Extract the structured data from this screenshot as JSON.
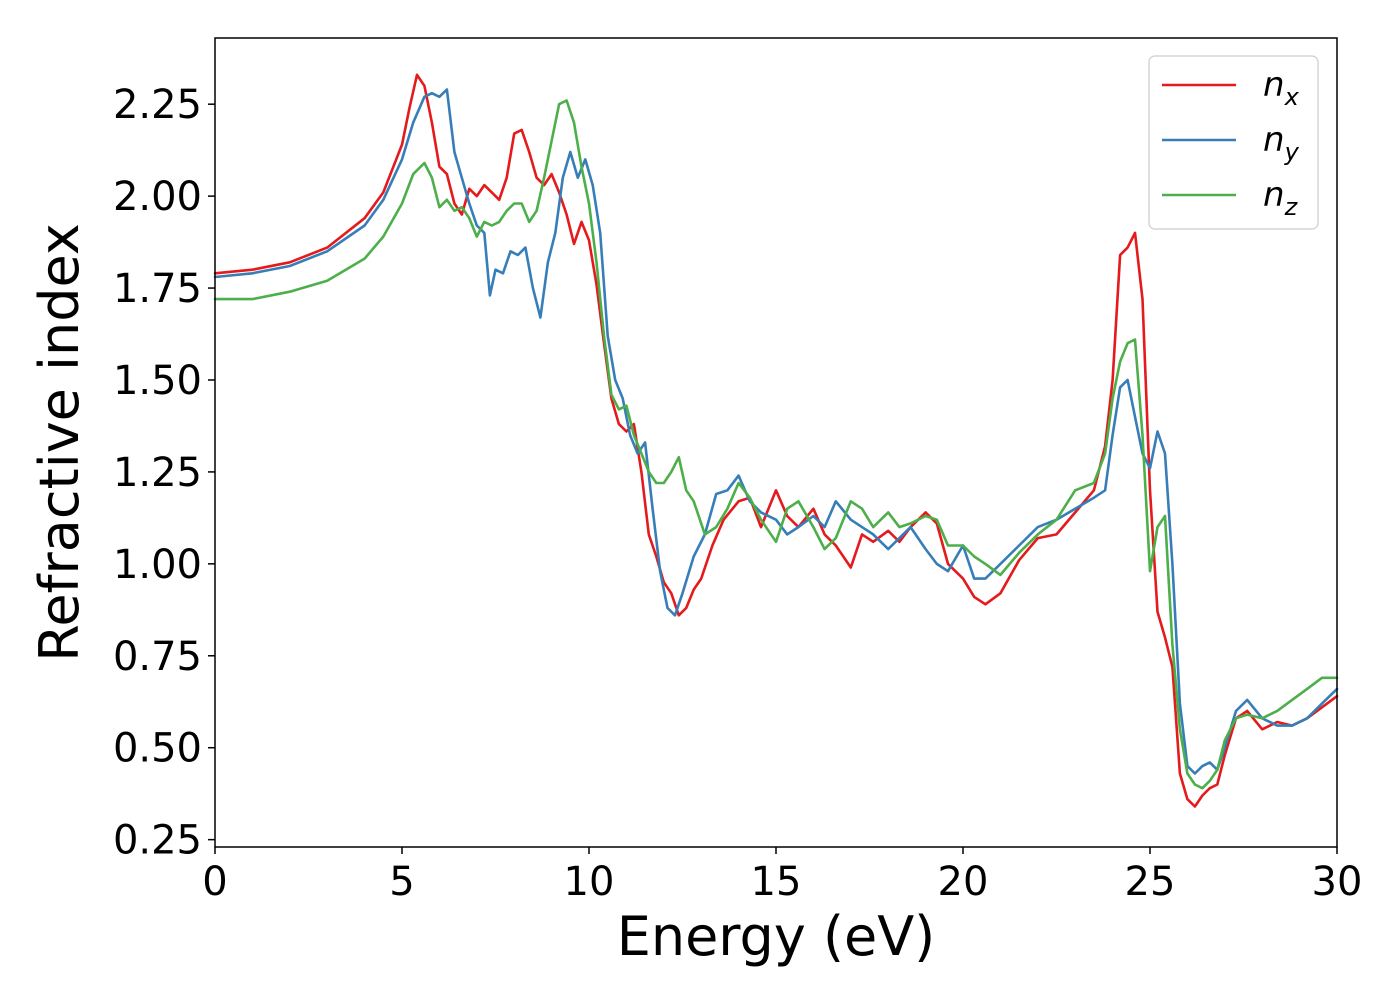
{
  "chart_data": {
    "type": "line",
    "xlabel": "Energy (eV)",
    "ylabel": "Refractive index",
    "xlim": [
      0,
      30
    ],
    "ylim": [
      0.23,
      2.43
    ],
    "xticks": [
      0,
      5,
      10,
      15,
      20,
      25,
      30
    ],
    "xtick_labels": [
      "0",
      "5",
      "10",
      "15",
      "20",
      "25",
      "30"
    ],
    "yticks": [
      0.25,
      0.5,
      0.75,
      1.0,
      1.25,
      1.5,
      1.75,
      2.0,
      2.25
    ],
    "ytick_labels": [
      "0.25",
      "0.50",
      "0.75",
      "1.00",
      "1.25",
      "1.50",
      "1.75",
      "2.00",
      "2.25"
    ],
    "grid": false,
    "legend_position": "top-right",
    "series": [
      {
        "name": "n",
        "subscript": "x",
        "color": "#e41a1c",
        "x": [
          0,
          1,
          2,
          3,
          4,
          4.5,
          5,
          5.2,
          5.4,
          5.6,
          5.8,
          6.0,
          6.2,
          6.4,
          6.6,
          6.8,
          7.0,
          7.2,
          7.4,
          7.6,
          7.8,
          8.0,
          8.2,
          8.4,
          8.6,
          8.8,
          9.0,
          9.2,
          9.4,
          9.6,
          9.8,
          10.0,
          10.2,
          10.4,
          10.6,
          10.8,
          11.0,
          11.2,
          11.4,
          11.6,
          11.8,
          12.0,
          12.2,
          12.4,
          12.6,
          12.8,
          13.0,
          13.3,
          13.6,
          14.0,
          14.3,
          14.6,
          15.0,
          15.3,
          15.6,
          16.0,
          16.3,
          16.6,
          17.0,
          17.3,
          17.6,
          18.0,
          18.3,
          18.6,
          19.0,
          19.3,
          19.6,
          20.0,
          20.3,
          20.6,
          21.0,
          21.5,
          22.0,
          22.5,
          23.0,
          23.5,
          23.8,
          24.0,
          24.2,
          24.4,
          24.6,
          24.8,
          25.0,
          25.2,
          25.4,
          25.6,
          25.8,
          26.0,
          26.2,
          26.4,
          26.6,
          26.8,
          27.0,
          27.3,
          27.6,
          28.0,
          28.4,
          28.8,
          29.2,
          29.6,
          30.0
        ],
        "values": [
          1.79,
          1.8,
          1.82,
          1.86,
          1.94,
          2.01,
          2.14,
          2.24,
          2.33,
          2.3,
          2.2,
          2.08,
          2.06,
          1.98,
          1.95,
          2.02,
          2.0,
          2.03,
          2.01,
          1.99,
          2.05,
          2.17,
          2.18,
          2.12,
          2.05,
          2.03,
          2.06,
          2.01,
          1.95,
          1.87,
          1.93,
          1.88,
          1.76,
          1.6,
          1.45,
          1.38,
          1.36,
          1.38,
          1.25,
          1.08,
          1.02,
          0.95,
          0.92,
          0.86,
          0.88,
          0.93,
          0.96,
          1.05,
          1.12,
          1.17,
          1.18,
          1.1,
          1.2,
          1.13,
          1.1,
          1.15,
          1.08,
          1.05,
          0.99,
          1.08,
          1.06,
          1.09,
          1.06,
          1.1,
          1.14,
          1.11,
          1.0,
          0.96,
          0.91,
          0.89,
          0.92,
          1.01,
          1.07,
          1.08,
          1.14,
          1.2,
          1.32,
          1.5,
          1.84,
          1.86,
          1.9,
          1.72,
          1.2,
          0.87,
          0.8,
          0.72,
          0.43,
          0.36,
          0.34,
          0.37,
          0.39,
          0.4,
          0.48,
          0.58,
          0.6,
          0.55,
          0.57,
          0.56,
          0.58,
          0.61,
          0.64
        ]
      },
      {
        "name": "n",
        "subscript": "y",
        "color": "#377eb8",
        "x": [
          0,
          1,
          2,
          3,
          4,
          4.5,
          5,
          5.3,
          5.6,
          5.8,
          6.0,
          6.2,
          6.4,
          6.6,
          6.8,
          7.0,
          7.2,
          7.35,
          7.5,
          7.7,
          7.9,
          8.1,
          8.3,
          8.5,
          8.7,
          8.9,
          9.1,
          9.3,
          9.5,
          9.7,
          9.9,
          10.1,
          10.3,
          10.5,
          10.7,
          10.9,
          11.1,
          11.3,
          11.5,
          11.7,
          11.9,
          12.1,
          12.3,
          12.5,
          12.8,
          13.1,
          13.4,
          13.7,
          14.0,
          14.3,
          14.6,
          15.0,
          15.3,
          15.6,
          16.0,
          16.3,
          16.6,
          17.0,
          17.3,
          17.6,
          18.0,
          18.3,
          18.6,
          19.0,
          19.3,
          19.6,
          20.0,
          20.3,
          20.6,
          21.0,
          21.5,
          22.0,
          22.5,
          23.0,
          23.5,
          23.8,
          24.0,
          24.2,
          24.4,
          24.6,
          24.8,
          25.0,
          25.2,
          25.4,
          25.6,
          25.8,
          26.0,
          26.2,
          26.4,
          26.6,
          26.8,
          27.0,
          27.3,
          27.6,
          28.0,
          28.4,
          28.8,
          29.2,
          29.6,
          30.0
        ],
        "values": [
          1.78,
          1.79,
          1.81,
          1.85,
          1.92,
          1.99,
          2.1,
          2.2,
          2.27,
          2.28,
          2.27,
          2.29,
          2.12,
          2.05,
          1.98,
          1.92,
          1.9,
          1.73,
          1.8,
          1.79,
          1.85,
          1.84,
          1.86,
          1.75,
          1.67,
          1.82,
          1.9,
          2.05,
          2.12,
          2.05,
          2.1,
          2.03,
          1.9,
          1.62,
          1.5,
          1.45,
          1.35,
          1.3,
          1.33,
          1.15,
          0.98,
          0.88,
          0.86,
          0.92,
          1.02,
          1.08,
          1.19,
          1.2,
          1.24,
          1.17,
          1.14,
          1.12,
          1.08,
          1.1,
          1.13,
          1.1,
          1.17,
          1.12,
          1.1,
          1.08,
          1.04,
          1.07,
          1.1,
          1.04,
          1.0,
          0.98,
          1.05,
          0.96,
          0.96,
          1.0,
          1.05,
          1.1,
          1.12,
          1.15,
          1.18,
          1.2,
          1.35,
          1.48,
          1.5,
          1.4,
          1.3,
          1.26,
          1.36,
          1.3,
          1.0,
          0.62,
          0.45,
          0.43,
          0.45,
          0.46,
          0.44,
          0.5,
          0.6,
          0.63,
          0.58,
          0.56,
          0.56,
          0.58,
          0.62,
          0.66
        ],
        "note": ""
      },
      {
        "name": "n",
        "subscript": "z",
        "color": "#4daf4a",
        "x": [
          0,
          1,
          2,
          3,
          4,
          4.5,
          5,
          5.3,
          5.6,
          5.8,
          6.0,
          6.2,
          6.4,
          6.6,
          6.8,
          7.0,
          7.2,
          7.4,
          7.6,
          7.8,
          8.0,
          8.2,
          8.4,
          8.6,
          8.8,
          9.0,
          9.2,
          9.4,
          9.6,
          9.8,
          10.0,
          10.2,
          10.4,
          10.6,
          10.8,
          11.0,
          11.2,
          11.4,
          11.6,
          11.8,
          12.0,
          12.2,
          12.4,
          12.6,
          12.8,
          13.1,
          13.4,
          13.7,
          14.0,
          14.3,
          14.6,
          15.0,
          15.3,
          15.6,
          16.0,
          16.3,
          16.6,
          17.0,
          17.3,
          17.6,
          18.0,
          18.3,
          18.6,
          19.0,
          19.3,
          19.6,
          20.0,
          20.3,
          20.6,
          21.0,
          21.5,
          22.0,
          22.5,
          23.0,
          23.5,
          23.8,
          24.0,
          24.2,
          24.4,
          24.6,
          24.8,
          25.0,
          25.2,
          25.4,
          25.6,
          25.8,
          26.0,
          26.2,
          26.4,
          26.6,
          26.8,
          27.0,
          27.3,
          27.6,
          28.0,
          28.4,
          28.8,
          29.2,
          29.6,
          30.0
        ],
        "values": [
          1.72,
          1.72,
          1.74,
          1.77,
          1.83,
          1.89,
          1.98,
          2.06,
          2.09,
          2.05,
          1.97,
          1.99,
          1.96,
          1.97,
          1.94,
          1.89,
          1.93,
          1.92,
          1.93,
          1.96,
          1.98,
          1.98,
          1.93,
          1.96,
          2.05,
          2.15,
          2.25,
          2.26,
          2.2,
          2.08,
          1.98,
          1.82,
          1.62,
          1.46,
          1.42,
          1.43,
          1.35,
          1.3,
          1.25,
          1.22,
          1.22,
          1.25,
          1.29,
          1.2,
          1.17,
          1.08,
          1.1,
          1.15,
          1.22,
          1.18,
          1.12,
          1.06,
          1.15,
          1.17,
          1.1,
          1.04,
          1.07,
          1.17,
          1.15,
          1.1,
          1.14,
          1.1,
          1.11,
          1.13,
          1.12,
          1.05,
          1.05,
          1.02,
          1.0,
          0.97,
          1.03,
          1.08,
          1.12,
          1.2,
          1.22,
          1.3,
          1.45,
          1.55,
          1.6,
          1.61,
          1.35,
          0.98,
          1.1,
          1.13,
          0.78,
          0.55,
          0.43,
          0.4,
          0.39,
          0.41,
          0.44,
          0.52,
          0.58,
          0.59,
          0.58,
          0.6,
          0.63,
          0.66,
          0.69,
          0.69
        ],
        "note": ""
      }
    ]
  }
}
